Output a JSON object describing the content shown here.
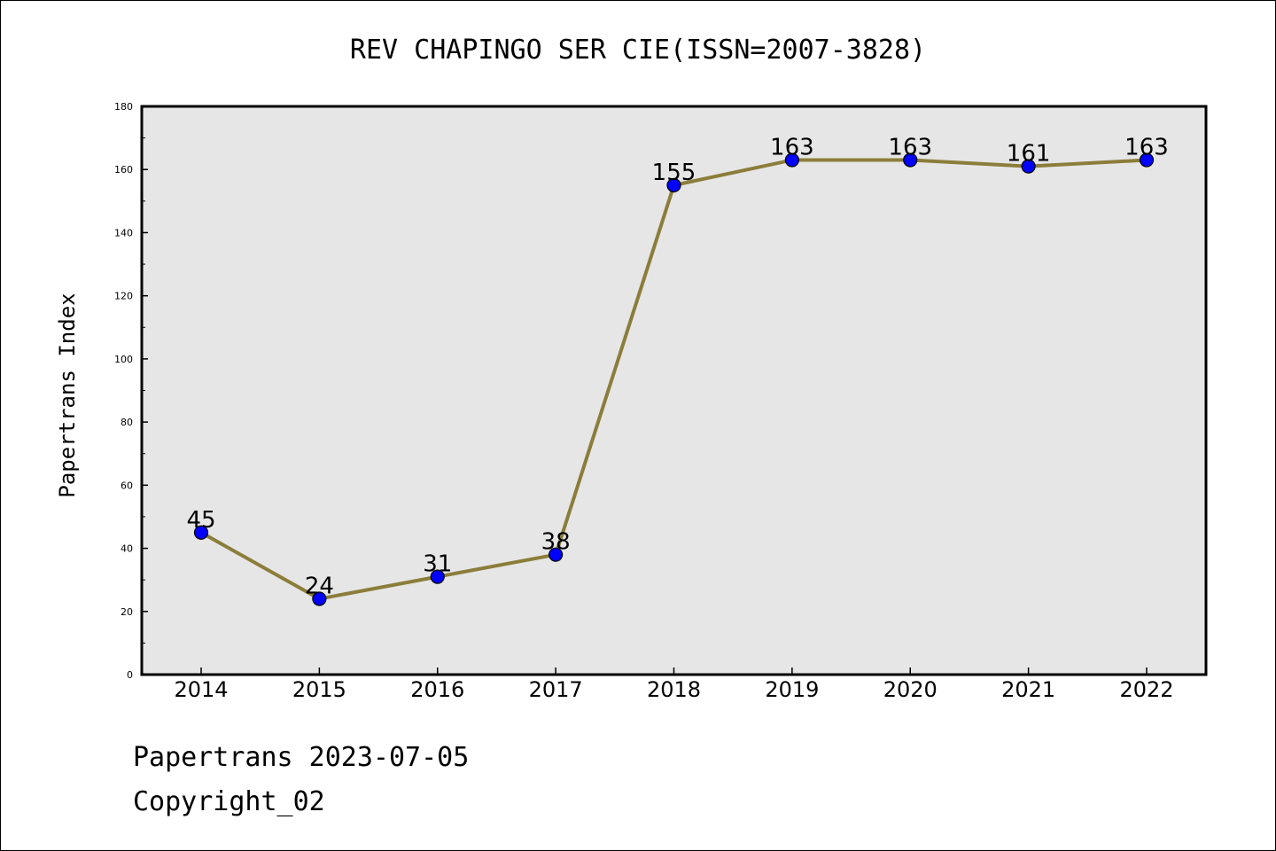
{
  "chart_data": {
    "type": "line",
    "title": "REV CHAPINGO SER CIE(ISSN=2007-3828)",
    "xlabel": "",
    "ylabel": "Papertrans Index",
    "categories": [
      "2014",
      "2015",
      "2016",
      "2017",
      "2018",
      "2019",
      "2020",
      "2021",
      "2022"
    ],
    "series": [
      {
        "values": [
          45,
          24,
          31,
          38,
          155,
          163,
          163,
          161,
          163
        ]
      }
    ],
    "data_labels": [
      "45",
      "24",
      "31",
      "38",
      "155",
      "163",
      "163",
      "161",
      "163"
    ],
    "ylim": [
      0,
      180
    ],
    "yticks": [
      "0",
      "20",
      "40",
      "60",
      "80",
      "100",
      "120",
      "140",
      "160",
      "180"
    ],
    "grid": false,
    "legend": "none",
    "colors": {
      "line": "#8B7D3A",
      "marker": "#0000FF",
      "plot_background": "#E6E6E6"
    }
  },
  "footer": {
    "line1": "Papertrans 2023-07-05",
    "line2": "Copyright_02"
  }
}
